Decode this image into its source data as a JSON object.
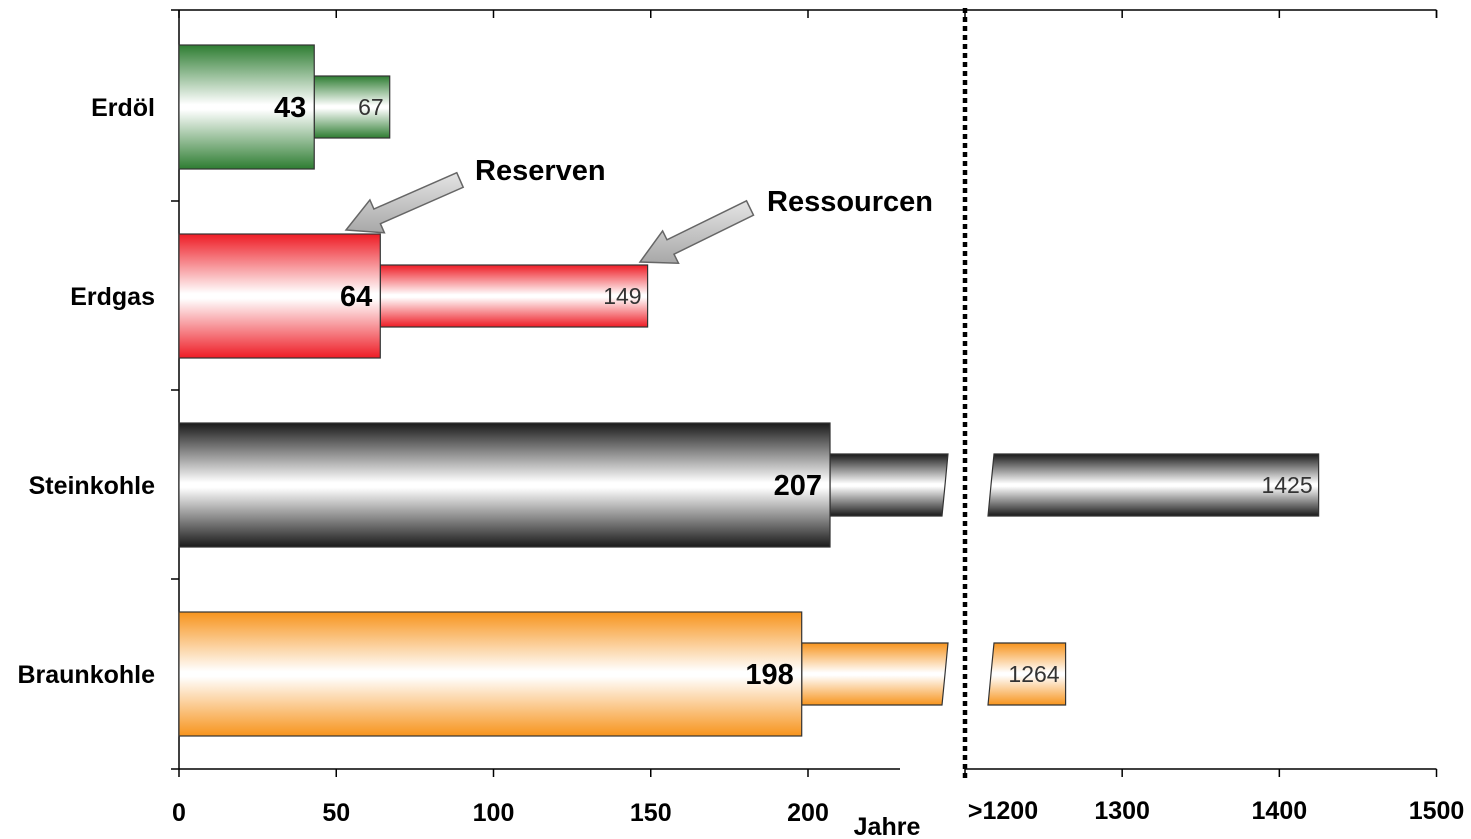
{
  "chart_data": {
    "type": "bar",
    "orientation": "horizontal",
    "categories": [
      "Erdöl",
      "Erdgas",
      "Steinkohle",
      "Braunkohle"
    ],
    "series": [
      {
        "name": "Reserven",
        "values": [
          43,
          64,
          207,
          198
        ]
      },
      {
        "name": "Ressourcen",
        "values": [
          67,
          149,
          1425,
          1264
        ]
      }
    ],
    "reserve_labels": [
      "43",
      "64",
      "207",
      "198"
    ],
    "resource_labels": [
      "67",
      "149",
      "1425",
      "1264"
    ],
    "annotations": [
      "Reserven",
      "Ressourcen"
    ],
    "xlabel": "Jahre",
    "x_ticks_left": [
      "0",
      "50",
      "100",
      "150",
      "200"
    ],
    "x_ticks_right": [
      ">1200",
      "1300",
      "1400",
      "1500"
    ],
    "xlim_left": [
      0,
      230
    ],
    "xlim_right": [
      1200,
      1500
    ],
    "axis_break": true,
    "grid": false,
    "colors": {
      "Erdöl": "#2e7d32",
      "Erdgas": "#ee1c25",
      "Steinkohle": "#1a1a1a",
      "Braunkohle": "#f7941d",
      "arrow": "#c0c0c0"
    }
  }
}
